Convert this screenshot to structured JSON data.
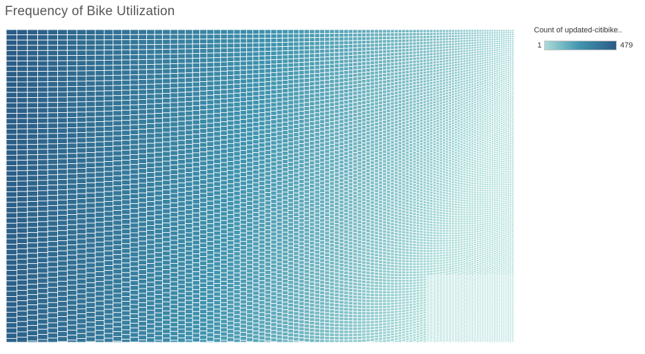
{
  "chart_data": {
    "type": "heatmap",
    "subtype": "treemap",
    "title": "Frequency of Bike Utilization",
    "legend": {
      "title": "Count of updated-citibike..",
      "min": 1,
      "max": 479,
      "placement": "top-right",
      "min_label": "1",
      "max_label": "479",
      "color_low": "#a9dcd8",
      "color_mid": "#3f93ae",
      "color_high": "#2a5c85"
    },
    "cell_stroke": "#ffffff"
  }
}
